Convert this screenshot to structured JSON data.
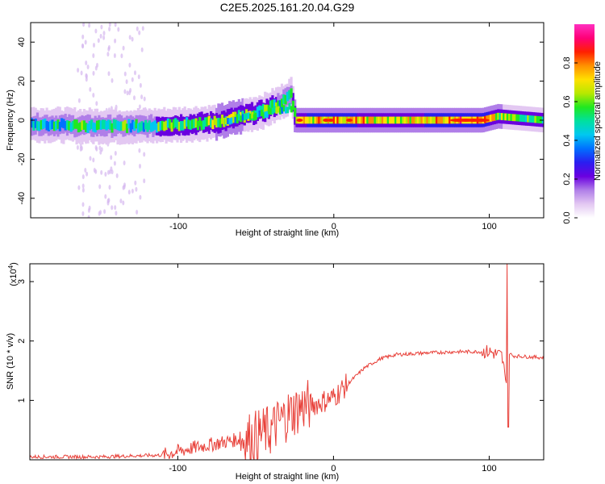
{
  "figure": {
    "title": "C2E5.2025.161.20.04.G29"
  },
  "chart_data": [
    {
      "type": "heatmap",
      "xlabel": "Height of straight line (km)",
      "ylabel": "Frequency (Hz)",
      "xlim": [
        -195,
        135
      ],
      "ylim": [
        -50,
        50
      ],
      "x_ticks": [
        -100,
        0,
        100
      ],
      "y_ticks": [
        -40,
        -20,
        0,
        20,
        40
      ],
      "colorbar": {
        "label": "Normalized spectral amplitude",
        "range": [
          0,
          1
        ],
        "ticks": [
          "0.0",
          "0.2",
          "0.4",
          "0.6",
          "0.8"
        ],
        "colors": [
          "#ffffff",
          "#e3c8f2",
          "#b07ee8",
          "#6a00e0",
          "#2a1ef0",
          "#0070ff",
          "#00c8f0",
          "#00e0a0",
          "#20e820",
          "#b8e800",
          "#ffe000",
          "#ff9000",
          "#ff2000",
          "#ff0078",
          "#ff30c0"
        ]
      },
      "trace": [
        {
          "x": -195,
          "f": -2,
          "amp": 0.45
        },
        {
          "x": -160,
          "f": -3,
          "amp": 0.5
        },
        {
          "x": -120,
          "f": -3,
          "amp": 0.5
        },
        {
          "x": -95,
          "f": -2,
          "amp": 0.55
        },
        {
          "x": -75,
          "f": -1,
          "amp": 0.6
        },
        {
          "x": -60,
          "f": 2,
          "amp": 0.6
        },
        {
          "x": -45,
          "f": 5,
          "amp": 0.55
        },
        {
          "x": -35,
          "f": 9,
          "amp": 0.5
        },
        {
          "x": -28,
          "f": 13,
          "amp": 0.45
        },
        {
          "x": -25,
          "f": 0,
          "amp": 0.7
        },
        {
          "x": 0,
          "f": 0,
          "amp": 0.75
        },
        {
          "x": 40,
          "f": 0,
          "amp": 0.65
        },
        {
          "x": 80,
          "f": 0,
          "amp": 0.8
        },
        {
          "x": 95,
          "f": 0,
          "amp": 0.8
        },
        {
          "x": 105,
          "f": 2,
          "amp": 0.6
        },
        {
          "x": 135,
          "f": 0,
          "amp": 0.55
        }
      ]
    },
    {
      "type": "line",
      "xlabel": "Height of straight line (km)",
      "ylabel": "SNR (10 * v/v)",
      "y_scale_note": "(x10^4)",
      "xlim": [
        -195,
        135
      ],
      "ylim": [
        0,
        3.3
      ],
      "x_ticks": [
        -100,
        0,
        100
      ],
      "y_ticks": [
        1,
        2,
        3
      ],
      "color": "#e8413a",
      "series": [
        {
          "x": [
            -195,
            -150,
            -110,
            -90,
            -70,
            -50,
            -40,
            -30,
            -20,
            -10,
            0,
            10,
            20,
            30,
            40,
            60,
            80,
            90,
            100,
            108,
            111,
            113,
            115,
            135
          ],
          "y": [
            0.05,
            0.05,
            0.08,
            0.2,
            0.3,
            0.4,
            0.5,
            0.75,
            0.9,
            0.95,
            1.05,
            1.3,
            1.55,
            1.7,
            1.77,
            1.8,
            1.82,
            1.82,
            1.82,
            1.75,
            1.3,
            1.8,
            1.75,
            1.72
          ]
        }
      ]
    }
  ]
}
